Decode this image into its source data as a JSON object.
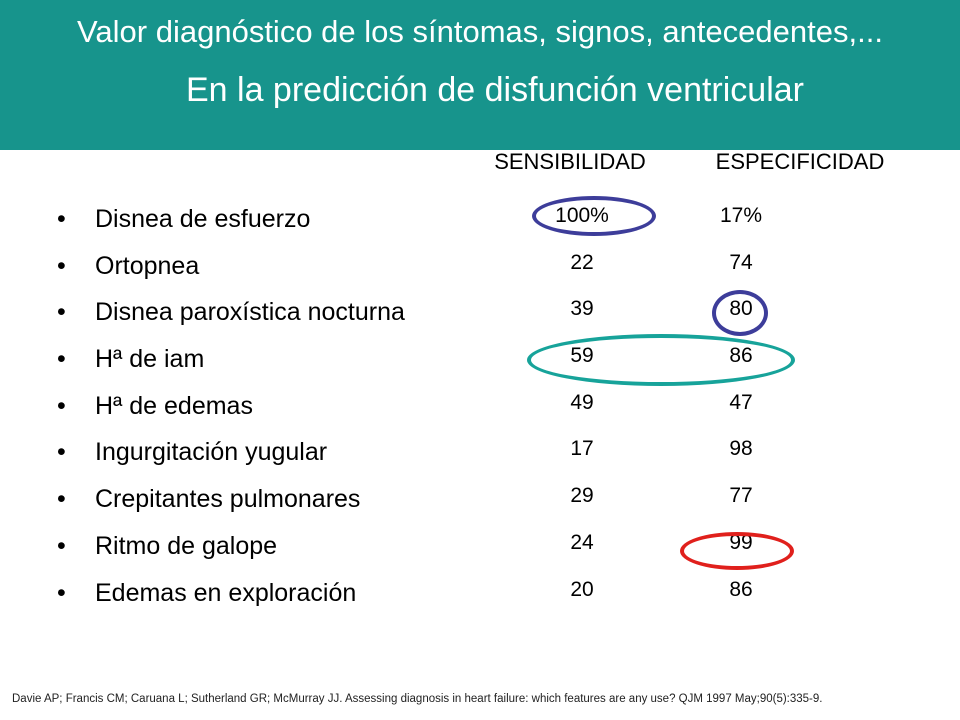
{
  "title": {
    "line1": "Valor diagnóstico de los síntomas, signos, antecedentes,...",
    "line2": "En la predicción de disfunción ventricular"
  },
  "columns": {
    "sens": "SENSIBILIDAD",
    "spec": "ESPECIFICIDAD"
  },
  "rows": [
    {
      "label": "Disnea de esfuerzo",
      "sens": "100%",
      "spec": "17%"
    },
    {
      "label": "Ortopnea",
      "sens": "22",
      "spec": "74"
    },
    {
      "label": "Disnea paroxística nocturna",
      "sens": "39",
      "spec": "80"
    },
    {
      "label": "Hª de iam",
      "sens": "59",
      "spec": "86"
    },
    {
      "label": "Hª de edemas",
      "sens": "49",
      "spec": "47"
    },
    {
      "label": "Ingurgitación yugular",
      "sens": "17",
      "spec": "98"
    },
    {
      "label": "Crepitantes pulmonares",
      "sens": "29",
      "spec": "77"
    },
    {
      "label": "Ritmo de galope",
      "sens": "24",
      "spec": "99"
    },
    {
      "label": "Edemas en exploración",
      "sens": "20",
      "spec": "86"
    }
  ],
  "bullet_char": "•",
  "colors": {
    "header": "#17948c",
    "ring_blue": "#3d3d9a",
    "ring_teal": "#17a39a",
    "ring_red": "#e0201c"
  },
  "citation": "Davie AP; Francis CM; Caruana  L; Sutherland GR; McMurray JJ. Assessing diagnosis in heart failure: which features are any use?  QJM 1997 May;90(5):335-9."
}
